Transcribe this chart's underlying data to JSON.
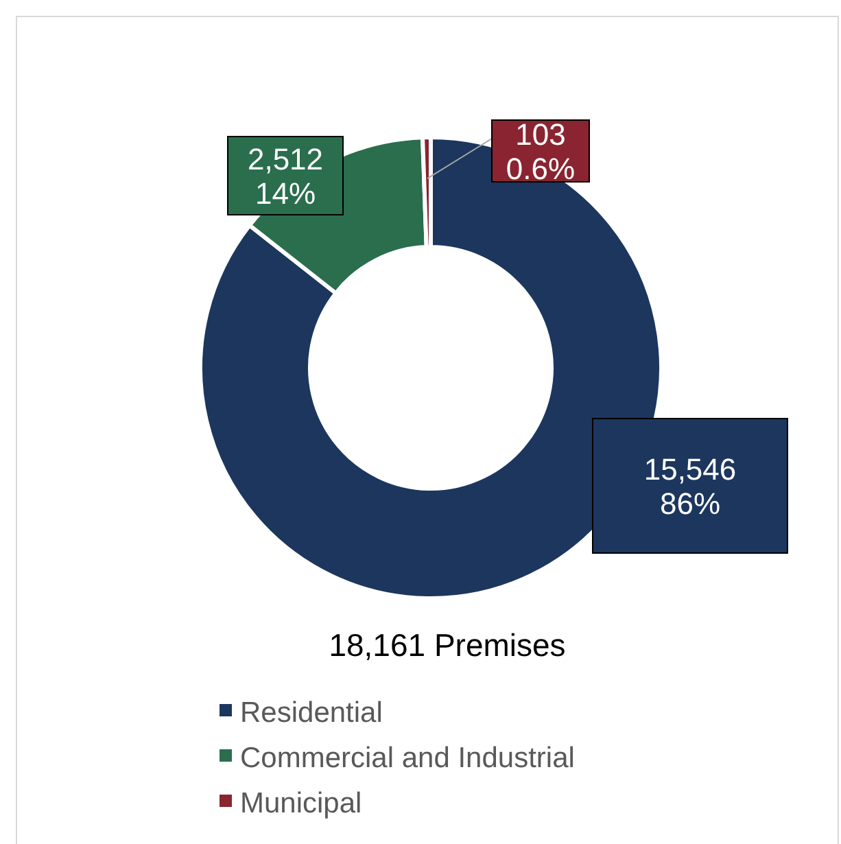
{
  "chart_data": {
    "type": "donut",
    "title": "18,161 Premises",
    "categories": [
      "Residential",
      "Commercial and Industrial",
      "Municipal"
    ],
    "values": [
      15546,
      2512,
      103
    ],
    "colors": [
      "#1c365e",
      "#2a6e4d",
      "#8a2430"
    ],
    "value_labels": [
      "15,546\n86%",
      "2,512\n14%",
      "103\n0.6%"
    ],
    "legend": "bottom"
  }
}
